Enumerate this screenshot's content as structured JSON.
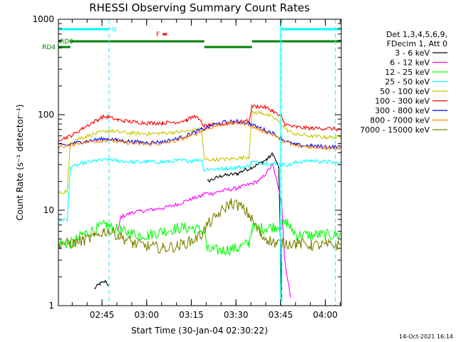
{
  "chart_data": {
    "type": "line",
    "title": "RHESSI Observing Summary Count Rates",
    "xlabel": "Start Time (30-Jan-04 02:30:22)",
    "ylabel": "Count Rate (s⁻¹ detector⁻¹)",
    "yscale": "log",
    "ylim": [
      1,
      1000
    ],
    "xlim_minutes": [
      0,
      95
    ],
    "x_ticks": [
      "02:45",
      "03:00",
      "03:15",
      "03:30",
      "03:45",
      "04:00"
    ],
    "y_ticks": [
      "1",
      "10",
      "100",
      "1000"
    ],
    "footer": "14-Oct-2021 16:14",
    "legend_header": [
      "Det 1,3,4,5,6,9,",
      "FDecim 1, Att 0"
    ],
    "flags": {
      "n_label": "N",
      "f_label": "F",
      "rd0_label": "RD0",
      "rd4_label": "RD4",
      "n_intervals": [
        [
          0,
          17
        ],
        [
          75,
          95
        ]
      ],
      "rd0_intervals": [
        [
          0,
          1
        ],
        [
          4,
          49
        ],
        [
          65,
          95
        ]
      ],
      "rd4_intervals": [
        [
          0,
          4
        ]
      ],
      "gap_intervals": [
        [
          49,
          65
        ]
      ],
      "f_interval": [
        35,
        36.5
      ],
      "saa_lines": [
        17,
        75,
        93
      ]
    },
    "series": [
      {
        "name": "3 - 6 keV",
        "color": "#000000",
        "x": [
          12,
          14,
          16,
          17,
          18,
          27,
          40,
          48,
          50,
          55,
          60,
          62,
          65,
          70,
          72,
          74,
          75
        ],
        "y": [
          1.5,
          1.7,
          1.8,
          1.6,
          null,
          null,
          null,
          null,
          20,
          23,
          24,
          26,
          28,
          34,
          39,
          28,
          1.2
        ]
      },
      {
        "name": "6 - 12 keV",
        "color": "#ff00ff",
        "x": [
          20,
          21,
          25,
          30,
          35,
          40,
          44,
          48,
          49,
          52,
          55,
          60,
          65,
          68,
          72,
          73,
          74,
          75,
          76,
          78
        ],
        "y": [
          6,
          8.5,
          9.5,
          10,
          10.5,
          11.5,
          13,
          14,
          15,
          15,
          16,
          17,
          19,
          21,
          30,
          22,
          17,
          12,
          3,
          1.2
        ]
      },
      {
        "name": "12 - 25 keV",
        "color": "#00ff00",
        "x": [
          0,
          3,
          5,
          8,
          13,
          16,
          18,
          22,
          27,
          30,
          35,
          40,
          45,
          49,
          50,
          55,
          60,
          64,
          65,
          70,
          75,
          77,
          78,
          80,
          85,
          95
        ],
        "y": [
          4.5,
          4.5,
          4.5,
          5.5,
          6.5,
          7,
          6.5,
          6,
          5.5,
          5.5,
          6,
          6.5,
          6.5,
          6,
          3.8,
          3.8,
          4,
          4.5,
          6.5,
          6.5,
          7,
          7.5,
          6.5,
          5.5,
          5.5,
          5.5
        ]
      },
      {
        "name": "25 - 50 keV",
        "color": "#00ffff",
        "x": [
          0,
          3,
          4,
          8,
          13,
          17,
          20,
          25,
          30,
          35,
          40,
          45,
          48,
          49,
          50,
          55,
          60,
          64,
          65,
          70,
          75,
          78,
          80,
          85,
          90,
          95
        ],
        "y": [
          7.8,
          8,
          28,
          31,
          33,
          34,
          33,
          32,
          32,
          32,
          33,
          33,
          34,
          26,
          27,
          27,
          28,
          29,
          32,
          31,
          30,
          30,
          32,
          33,
          32,
          31
        ]
      },
      {
        "name": "50 - 100 keV",
        "color": "#c8c800",
        "x": [
          0,
          3,
          4,
          8,
          13,
          17,
          20,
          25,
          30,
          35,
          40,
          45,
          48,
          49,
          52,
          56,
          60,
          64,
          65,
          68,
          70,
          73,
          75,
          77,
          80,
          85,
          90,
          95
        ],
        "y": [
          15,
          16,
          52,
          58,
          64,
          68,
          66,
          64,
          63,
          64,
          66,
          68,
          72,
          34,
          34,
          34,
          35,
          36,
          105,
          105,
          100,
          90,
          78,
          68,
          62,
          60,
          58,
          58
        ]
      },
      {
        "name": "100 - 300 keV",
        "color": "#ff0000",
        "x": [
          0,
          3,
          5,
          8,
          13,
          15,
          17,
          20,
          25,
          30,
          35,
          40,
          43,
          46,
          49,
          52,
          56,
          60,
          64,
          65,
          68,
          70,
          72,
          74,
          75,
          76,
          78,
          80,
          85,
          90,
          95
        ],
        "y": [
          55,
          58,
          62,
          72,
          88,
          96,
          94,
          88,
          84,
          82,
          82,
          84,
          88,
          97,
          76,
          78,
          80,
          84,
          86,
          122,
          122,
          118,
          110,
          98,
          95,
          80,
          76,
          74,
          72,
          72,
          70
        ]
      },
      {
        "name": "300 - 800 keV",
        "color": "#0000ff",
        "x": [
          0,
          3,
          5,
          8,
          13,
          17,
          20,
          25,
          30,
          35,
          40,
          45,
          48,
          52,
          56,
          60,
          64,
          65,
          68,
          72,
          75,
          78,
          80,
          85,
          90,
          95
        ],
        "y": [
          48,
          48,
          50,
          52,
          55,
          56,
          54,
          52,
          51,
          52,
          56,
          64,
          70,
          78,
          84,
          85,
          82,
          78,
          72,
          64,
          56,
          50,
          48,
          47,
          46,
          46
        ]
      },
      {
        "name": "800 - 7000 keV",
        "color": "#ff8800",
        "x": [
          0,
          3,
          5,
          8,
          13,
          17,
          20,
          25,
          30,
          35,
          40,
          45,
          48,
          52,
          56,
          60,
          64,
          65,
          68,
          72,
          75,
          78,
          80,
          85,
          90,
          95
        ],
        "y": [
          47,
          47,
          49,
          51,
          53,
          54,
          52,
          50,
          49,
          50,
          54,
          61,
          67,
          75,
          81,
          82,
          79,
          75,
          69,
          62,
          54,
          49,
          47,
          46,
          45,
          45
        ]
      },
      {
        "name": "7000 - 15000 keV",
        "color": "#808000",
        "x": [
          0,
          3,
          5,
          8,
          12,
          15,
          17,
          20,
          25,
          30,
          35,
          40,
          45,
          48,
          50,
          52,
          55,
          58,
          61,
          64,
          66,
          68,
          70,
          73,
          75,
          78,
          80,
          85,
          90,
          95
        ],
        "y": [
          4.5,
          4.5,
          4.5,
          4.8,
          5.2,
          6,
          6,
          5.5,
          4.5,
          4.2,
          4,
          4.2,
          4.8,
          5.5,
          7,
          8,
          10,
          12,
          11,
          9,
          7,
          5.5,
          5,
          4.5,
          4.5,
          4.5,
          4.5,
          4.3,
          4.3,
          4.3
        ]
      }
    ]
  }
}
